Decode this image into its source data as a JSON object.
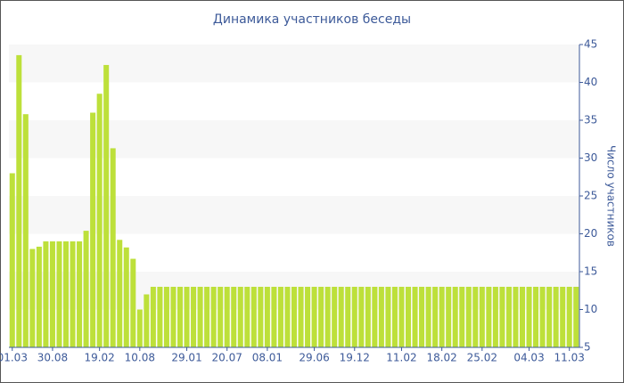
{
  "chart_data": {
    "type": "bar",
    "title": "Динамика участников беседы",
    "y_axis_label": "Число участников",
    "categories": [
      "01.03",
      null,
      null,
      null,
      null,
      null,
      "30.08",
      null,
      null,
      null,
      null,
      null,
      null,
      "19.02",
      null,
      null,
      null,
      null,
      null,
      "10.08",
      null,
      null,
      null,
      null,
      null,
      null,
      "29.01",
      null,
      null,
      null,
      null,
      null,
      "20.07",
      null,
      null,
      null,
      null,
      null,
      "08.01",
      null,
      null,
      null,
      null,
      null,
      null,
      "29.06",
      null,
      null,
      null,
      null,
      null,
      "19.12",
      null,
      null,
      null,
      null,
      null,
      null,
      "11.02",
      null,
      null,
      null,
      null,
      null,
      "18.02",
      null,
      null,
      null,
      null,
      null,
      "25.02",
      null,
      null,
      null,
      null,
      null,
      null,
      "04.03",
      null,
      null,
      null,
      null,
      null,
      "11.03",
      null
    ],
    "values": [
      28,
      43.6,
      35.8,
      18,
      18.3,
      19,
      19,
      19,
      19,
      19,
      19,
      20.4,
      36,
      38.5,
      42.3,
      31.3,
      19.2,
      18.2,
      16.7,
      10,
      12,
      13,
      13,
      13,
      13,
      13,
      13,
      13,
      13,
      13,
      13,
      13,
      13,
      13,
      13,
      13,
      13,
      13,
      13,
      13,
      13,
      13,
      13,
      13,
      13,
      13,
      13,
      13,
      13,
      13,
      13,
      13,
      13,
      13,
      13,
      13,
      13,
      13,
      13,
      13,
      13,
      13,
      13,
      13,
      13,
      13,
      13,
      13,
      13,
      13,
      13,
      13,
      13,
      13,
      13,
      13,
      13,
      13,
      13,
      13,
      13,
      13,
      13,
      13,
      13
    ],
    "color": "#bde03a",
    "ylim": [
      5,
      45
    ],
    "yticks": [
      5,
      10,
      15,
      20,
      25,
      30,
      35,
      40,
      45
    ],
    "grid": true
  }
}
